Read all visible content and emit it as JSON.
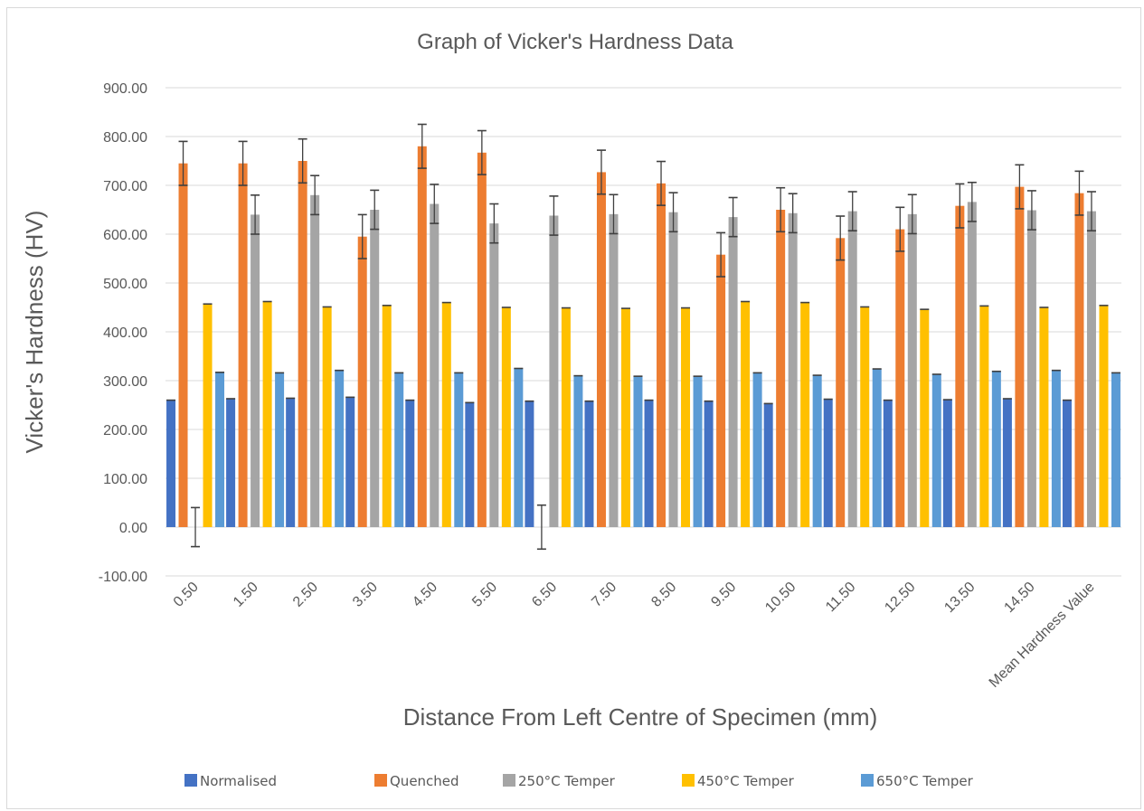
{
  "chart_data": {
    "type": "bar",
    "title": "Graph of Vicker's Hardness Data",
    "xlabel": "Distance From Left Centre of Specimen (mm)",
    "ylabel": "Vicker's Hardness (HV)",
    "ylim": [
      -100,
      900
    ],
    "yticks": [
      "-100.00",
      "0.00",
      "100.00",
      "200.00",
      "300.00",
      "400.00",
      "500.00",
      "600.00",
      "700.00",
      "800.00",
      "900.00"
    ],
    "grid": true,
    "legend_position": "bottom",
    "error_bars": true,
    "categories": [
      "0.50",
      "1.50",
      "2.50",
      "3.50",
      "4.50",
      "5.50",
      "6.50",
      "7.50",
      "8.50",
      "9.50",
      "10.50",
      "11.50",
      "12.50",
      "13.50",
      "14.50",
      "Mean Hardness Value"
    ],
    "series": [
      {
        "name": "Normalised",
        "color": "#4472c4",
        "values": [
          260,
          263,
          264,
          266,
          260,
          255,
          258,
          258,
          260,
          258,
          253,
          262,
          260,
          261,
          263,
          260
        ],
        "errors": [
          0,
          0,
          0,
          0,
          0,
          0,
          0,
          0,
          0,
          0,
          0,
          0,
          0,
          0,
          0,
          0
        ]
      },
      {
        "name": "Quenched",
        "color": "#ed7d31",
        "values": [
          745,
          745,
          750,
          595,
          780,
          767,
          0,
          727,
          704,
          558,
          650,
          592,
          610,
          658,
          697,
          684
        ],
        "errors": [
          45,
          45,
          45,
          45,
          45,
          45,
          45,
          45,
          45,
          45,
          45,
          45,
          45,
          45,
          45,
          45
        ]
      },
      {
        "name": "250°C  Temper",
        "color": "#a5a5a5",
        "values": [
          0,
          640,
          680,
          650,
          662,
          622,
          638,
          641,
          645,
          635,
          643,
          647,
          641,
          666,
          649,
          647
        ],
        "errors": [
          40,
          40,
          40,
          40,
          40,
          40,
          40,
          40,
          40,
          40,
          40,
          40,
          40,
          40,
          40,
          40
        ]
      },
      {
        "name": "450°C  Temper",
        "color": "#ffc000",
        "values": [
          457,
          462,
          451,
          454,
          460,
          450,
          449,
          448,
          449,
          462,
          460,
          451,
          446,
          453,
          450,
          454
        ],
        "errors": [
          0,
          0,
          0,
          0,
          0,
          0,
          0,
          0,
          0,
          0,
          0,
          0,
          0,
          0,
          0,
          0
        ]
      },
      {
        "name": "650°C  Temper",
        "color": "#5b9bd5",
        "values": [
          317,
          316,
          321,
          316,
          316,
          325,
          310,
          309,
          309,
          316,
          311,
          324,
          313,
          319,
          321,
          316
        ],
        "errors": [
          0,
          0,
          0,
          0,
          0,
          0,
          0,
          0,
          0,
          0,
          0,
          0,
          0,
          0,
          0,
          0
        ]
      }
    ]
  }
}
